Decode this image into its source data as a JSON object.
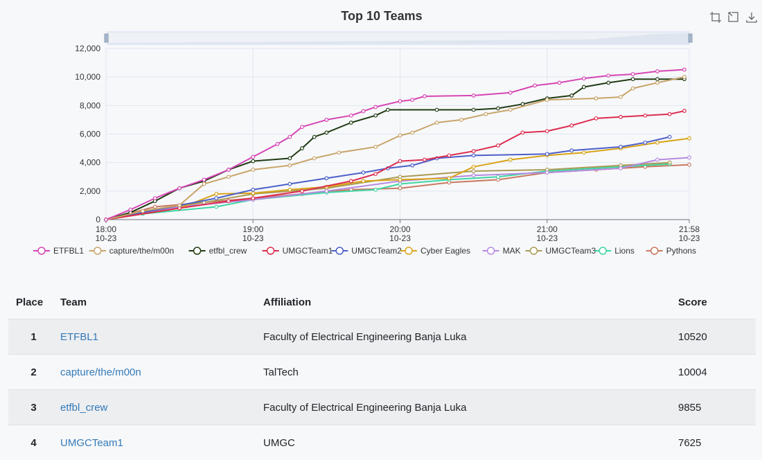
{
  "chart_data": {
    "type": "line",
    "title": "Top 10 Teams",
    "xlabel": "",
    "ylabel": "",
    "ylim": [
      0,
      12000
    ],
    "y_ticks": [
      "0",
      "2,000",
      "4,000",
      "6,000",
      "8,000",
      "10,000",
      "12,000"
    ],
    "x_range": [
      "18:00",
      "21:58"
    ],
    "x_ticks": [
      {
        "time": "18:00",
        "date": "10-23"
      },
      {
        "time": "19:00",
        "date": "10-23"
      },
      {
        "time": "20:00",
        "date": "10-23"
      },
      {
        "time": "21:00",
        "date": "10-23"
      },
      {
        "time": "21:58",
        "date": "10-23"
      }
    ],
    "grid": true,
    "legend_position": "bottom",
    "series": [
      {
        "name": "ETFBL1",
        "color": "#d645b4",
        "points": [
          [
            "18:00",
            0
          ],
          [
            "18:10",
            700
          ],
          [
            "18:20",
            1500
          ],
          [
            "18:30",
            2200
          ],
          [
            "18:40",
            2800
          ],
          [
            "18:50",
            3500
          ],
          [
            "19:00",
            4400
          ],
          [
            "19:10",
            5300
          ],
          [
            "19:15",
            5800
          ],
          [
            "19:20",
            6500
          ],
          [
            "19:30",
            7000
          ],
          [
            "19:40",
            7300
          ],
          [
            "19:45",
            7600
          ],
          [
            "19:50",
            7900
          ],
          [
            "20:00",
            8300
          ],
          [
            "20:05",
            8400
          ],
          [
            "20:10",
            8650
          ],
          [
            "20:30",
            8700
          ],
          [
            "20:45",
            8900
          ],
          [
            "20:55",
            9400
          ],
          [
            "21:05",
            9600
          ],
          [
            "21:15",
            9900
          ],
          [
            "21:25",
            10100
          ],
          [
            "21:35",
            10200
          ],
          [
            "21:45",
            10400
          ],
          [
            "21:56",
            10520
          ]
        ]
      },
      {
        "name": "capture/the/m00n",
        "color": "#c8a46a",
        "points": [
          [
            "18:00",
            0
          ],
          [
            "18:15",
            600
          ],
          [
            "18:30",
            1000
          ],
          [
            "18:40",
            2500
          ],
          [
            "18:50",
            3000
          ],
          [
            "19:00",
            3500
          ],
          [
            "19:15",
            3800
          ],
          [
            "19:25",
            4300
          ],
          [
            "19:35",
            4700
          ],
          [
            "19:50",
            5100
          ],
          [
            "20:00",
            5900
          ],
          [
            "20:05",
            6100
          ],
          [
            "20:15",
            6800
          ],
          [
            "20:25",
            7000
          ],
          [
            "20:35",
            7400
          ],
          [
            "20:45",
            7700
          ],
          [
            "21:00",
            8400
          ],
          [
            "21:20",
            8500
          ],
          [
            "21:30",
            8600
          ],
          [
            "21:35",
            9200
          ],
          [
            "21:45",
            9600
          ],
          [
            "21:56",
            10004
          ]
        ]
      },
      {
        "name": "etfbl_crew",
        "color": "#1f3a12",
        "points": [
          [
            "18:00",
            0
          ],
          [
            "18:10",
            500
          ],
          [
            "18:20",
            1300
          ],
          [
            "18:30",
            2200
          ],
          [
            "18:40",
            2700
          ],
          [
            "18:50",
            3500
          ],
          [
            "19:00",
            4100
          ],
          [
            "19:15",
            4300
          ],
          [
            "19:20",
            5000
          ],
          [
            "19:25",
            5800
          ],
          [
            "19:30",
            6100
          ],
          [
            "19:40",
            6800
          ],
          [
            "19:50",
            7300
          ],
          [
            "19:55",
            7700
          ],
          [
            "20:15",
            7700
          ],
          [
            "20:30",
            7700
          ],
          [
            "20:40",
            7800
          ],
          [
            "20:50",
            8100
          ],
          [
            "21:00",
            8500
          ],
          [
            "21:10",
            8700
          ],
          [
            "21:15",
            9300
          ],
          [
            "21:25",
            9600
          ],
          [
            "21:35",
            9850
          ],
          [
            "21:45",
            9850
          ],
          [
            "21:56",
            9855
          ]
        ]
      },
      {
        "name": "UMGCTeam1",
        "color": "#dd2b4e",
        "points": [
          [
            "18:00",
            0
          ],
          [
            "18:30",
            800
          ],
          [
            "18:50",
            1300
          ],
          [
            "19:00",
            1500
          ],
          [
            "19:20",
            2000
          ],
          [
            "19:40",
            2700
          ],
          [
            "19:50",
            3200
          ],
          [
            "20:00",
            4100
          ],
          [
            "20:10",
            4200
          ],
          [
            "20:20",
            4500
          ],
          [
            "20:30",
            4800
          ],
          [
            "20:40",
            5200
          ],
          [
            "20:50",
            6100
          ],
          [
            "21:00",
            6200
          ],
          [
            "21:10",
            6600
          ],
          [
            "21:20",
            7100
          ],
          [
            "21:30",
            7200
          ],
          [
            "21:40",
            7300
          ],
          [
            "21:50",
            7400
          ],
          [
            "21:56",
            7625
          ]
        ]
      },
      {
        "name": "UMGCTeam2",
        "color": "#4b5fc8",
        "points": [
          [
            "18:00",
            0
          ],
          [
            "18:30",
            1000
          ],
          [
            "18:45",
            1500
          ],
          [
            "19:00",
            2100
          ],
          [
            "19:15",
            2500
          ],
          [
            "19:30",
            2900
          ],
          [
            "19:45",
            3300
          ],
          [
            "19:55",
            3600
          ],
          [
            "20:05",
            3800
          ],
          [
            "20:15",
            4300
          ],
          [
            "20:30",
            4500
          ],
          [
            "21:00",
            4600
          ],
          [
            "21:10",
            4850
          ],
          [
            "21:30",
            5100
          ],
          [
            "21:40",
            5400
          ],
          [
            "21:50",
            5800
          ]
        ]
      },
      {
        "name": "Cyber Eagles",
        "color": "#d8a317",
        "points": [
          [
            "18:00",
            0
          ],
          [
            "18:30",
            800
          ],
          [
            "18:45",
            1800
          ],
          [
            "19:00",
            1850
          ],
          [
            "19:15",
            2100
          ],
          [
            "19:30",
            2300
          ],
          [
            "19:45",
            2700
          ],
          [
            "20:00",
            2800
          ],
          [
            "20:20",
            2900
          ],
          [
            "20:30",
            3700
          ],
          [
            "20:45",
            4200
          ],
          [
            "21:00",
            4500
          ],
          [
            "21:15",
            4700
          ],
          [
            "21:30",
            5000
          ],
          [
            "21:45",
            5400
          ],
          [
            "21:58",
            5700
          ]
        ]
      },
      {
        "name": "MAK",
        "color": "#b58ae0",
        "points": [
          [
            "18:00",
            0
          ],
          [
            "18:30",
            900
          ],
          [
            "19:00",
            1400
          ],
          [
            "19:30",
            2000
          ],
          [
            "20:00",
            2700
          ],
          [
            "20:30",
            3100
          ],
          [
            "21:00",
            3300
          ],
          [
            "21:30",
            3600
          ],
          [
            "21:45",
            4200
          ],
          [
            "21:58",
            4350
          ]
        ]
      },
      {
        "name": "UMGCTeam3",
        "color": "#a99a56",
        "points": [
          [
            "18:00",
            0
          ],
          [
            "18:20",
            700
          ],
          [
            "18:40",
            1200
          ],
          [
            "19:00",
            1800
          ],
          [
            "19:30",
            2200
          ],
          [
            "20:00",
            3000
          ],
          [
            "20:30",
            3400
          ],
          [
            "21:00",
            3500
          ],
          [
            "21:30",
            3800
          ],
          [
            "21:50",
            4000
          ]
        ]
      },
      {
        "name": "Lions",
        "color": "#3ed6a3",
        "points": [
          [
            "18:00",
            0
          ],
          [
            "18:15",
            400
          ],
          [
            "18:45",
            900
          ],
          [
            "19:00",
            1400
          ],
          [
            "19:30",
            1900
          ],
          [
            "19:50",
            2100
          ],
          [
            "20:00",
            2500
          ],
          [
            "20:20",
            2800
          ],
          [
            "20:40",
            3000
          ],
          [
            "21:00",
            3400
          ],
          [
            "21:30",
            3700
          ],
          [
            "21:50",
            3900
          ]
        ]
      },
      {
        "name": "Pythons",
        "color": "#c8785e",
        "points": [
          [
            "18:00",
            0
          ],
          [
            "18:20",
            900
          ],
          [
            "18:40",
            1200
          ],
          [
            "19:00",
            1500
          ],
          [
            "19:20",
            1800
          ],
          [
            "19:40",
            2100
          ],
          [
            "20:00",
            2200
          ],
          [
            "20:20",
            2600
          ],
          [
            "20:40",
            2800
          ],
          [
            "21:00",
            3300
          ],
          [
            "21:20",
            3500
          ],
          [
            "21:40",
            3700
          ],
          [
            "21:58",
            3850
          ]
        ]
      }
    ]
  },
  "scoreboard": {
    "headers": {
      "place": "Place",
      "team": "Team",
      "affiliation": "Affiliation",
      "score": "Score"
    },
    "rows": [
      {
        "place": "1",
        "team": "ETFBL1",
        "affiliation": "Faculty of Electrical Engineering Banja Luka",
        "score": "10520"
      },
      {
        "place": "2",
        "team": "capture/the/m00n",
        "affiliation": "TalTech",
        "score": "10004"
      },
      {
        "place": "3",
        "team": "etfbl_crew",
        "affiliation": "Faculty of Electrical Engineering Banja Luka",
        "score": "9855"
      },
      {
        "place": "4",
        "team": "UMGCTeam1",
        "affiliation": "UMGC",
        "score": "7625"
      }
    ]
  },
  "toolbox": {
    "icons": [
      "zoom-icon",
      "zoom-reset-icon",
      "download-icon"
    ],
    "color": "#666666"
  }
}
